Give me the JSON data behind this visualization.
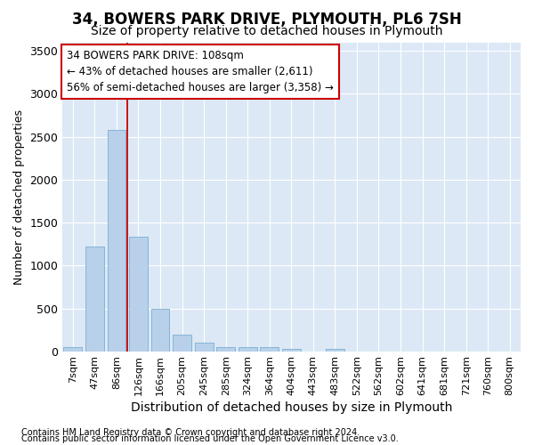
{
  "title1": "34, BOWERS PARK DRIVE, PLYMOUTH, PL6 7SH",
  "title2": "Size of property relative to detached houses in Plymouth",
  "xlabel": "Distribution of detached houses by size in Plymouth",
  "ylabel": "Number of detached properties",
  "bar_labels": [
    "7sqm",
    "47sqm",
    "86sqm",
    "126sqm",
    "166sqm",
    "205sqm",
    "245sqm",
    "285sqm",
    "324sqm",
    "364sqm",
    "404sqm",
    "443sqm",
    "483sqm",
    "522sqm",
    "562sqm",
    "602sqm",
    "641sqm",
    "681sqm",
    "721sqm",
    "760sqm",
    "800sqm"
  ],
  "bar_values": [
    50,
    1225,
    2580,
    1340,
    500,
    195,
    105,
    55,
    50,
    50,
    30,
    0,
    30,
    0,
    0,
    0,
    0,
    0,
    0,
    0,
    0
  ],
  "bar_color": "#b8d0ea",
  "bar_edge_color": "#7aafd4",
  "vline_color": "#cc0000",
  "annotation_text": "34 BOWERS PARK DRIVE: 108sqm\n← 43% of detached houses are smaller (2,611)\n56% of semi-detached houses are larger (3,358) →",
  "annotation_box_color": "#ffffff",
  "annotation_box_edge": "#cc0000",
  "ylim": [
    0,
    3600
  ],
  "yticks": [
    0,
    500,
    1000,
    1500,
    2000,
    2500,
    3000,
    3500
  ],
  "footer1": "Contains HM Land Registry data © Crown copyright and database right 2024.",
  "footer2": "Contains public sector information licensed under the Open Government Licence v3.0.",
  "fig_bg": "#ffffff",
  "plot_bg": "#dce8f5",
  "grid_color": "#ffffff",
  "title1_fontsize": 12,
  "title2_fontsize": 10,
  "tick_fontsize": 8,
  "ylabel_fontsize": 9,
  "xlabel_fontsize": 10,
  "annot_fontsize": 8.5,
  "footer_fontsize": 7
}
